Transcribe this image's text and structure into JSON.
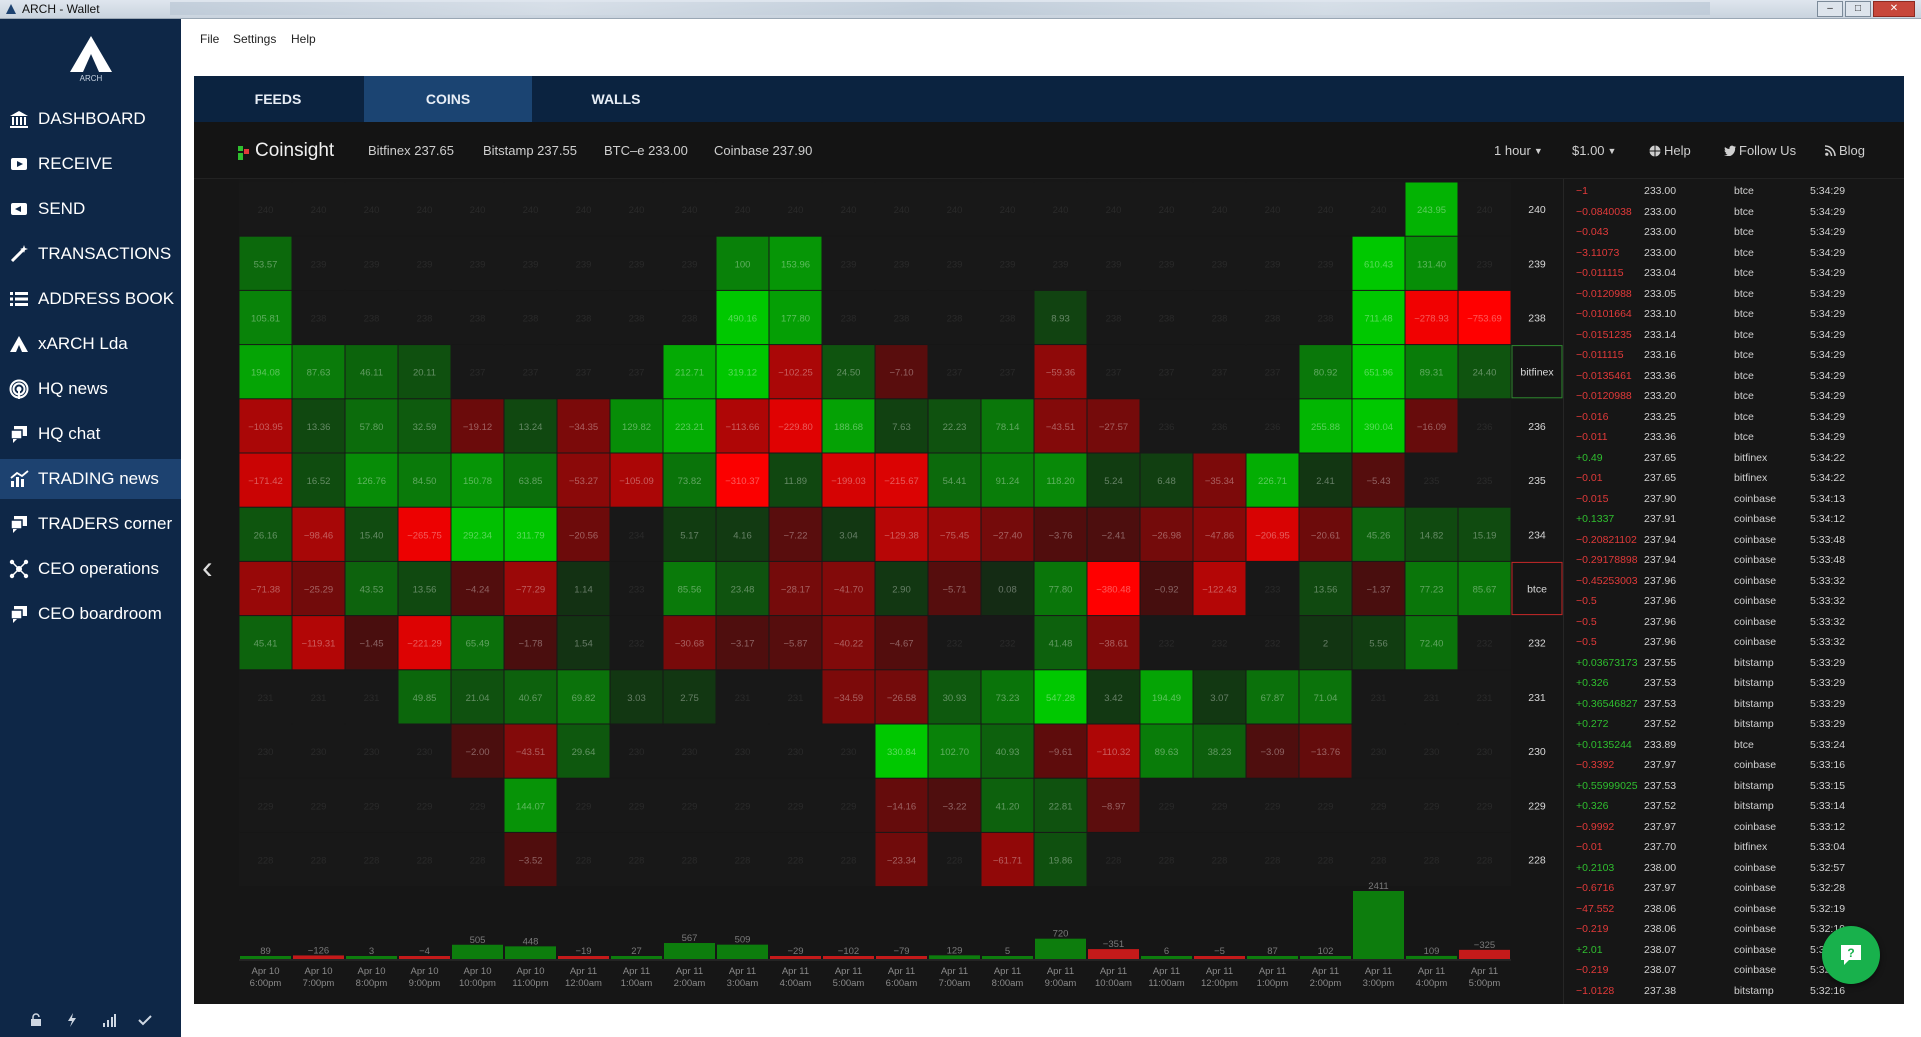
{
  "window": {
    "title": "ARCH - Wallet",
    "buttons": [
      "–",
      "□",
      "✕"
    ]
  },
  "logo": {
    "text": "ARCH"
  },
  "sidebar": {
    "items": [
      {
        "label": "DASHBOARD",
        "icon": "bank-icon",
        "active": false
      },
      {
        "label": "RECEIVE",
        "icon": "receive-icon",
        "active": false
      },
      {
        "label": "SEND",
        "icon": "send-icon",
        "active": false
      },
      {
        "label": "TRANSACTIONS",
        "icon": "magic-wand-icon",
        "active": false
      },
      {
        "label": "ADDRESS BOOK",
        "icon": "list-icon",
        "active": false
      },
      {
        "label": "xARCH Lda",
        "icon": "arch-logo-icon",
        "active": false
      },
      {
        "label": "HQ news",
        "icon": "broadcast-icon",
        "active": false
      },
      {
        "label": "HQ chat",
        "icon": "chat-icon",
        "active": false
      },
      {
        "label": "TRADING news",
        "icon": "chart-icon",
        "active": true
      },
      {
        "label": "TRADERS corner",
        "icon": "chat-icon",
        "active": false
      },
      {
        "label": "CEO operations",
        "icon": "network-icon",
        "active": false
      },
      {
        "label": "CEO boardroom",
        "icon": "chat-icon",
        "active": false
      }
    ],
    "footer_icons": [
      "lock-icon",
      "lightning-icon",
      "signal-icon",
      "check-icon"
    ]
  },
  "menu": {
    "items": [
      "File",
      "Settings",
      "Help"
    ]
  },
  "tabs": [
    {
      "label": "FEEDS",
      "active": false
    },
    {
      "label": "COINS",
      "active": true
    },
    {
      "label": "WALLS",
      "active": false
    }
  ],
  "coinsight": {
    "brand": "Coinsight",
    "exchanges": [
      "Bitfinex 237.65",
      "Bitstamp 237.55",
      "BTC–e 233.00",
      "Coinbase 237.90"
    ],
    "interval": "1 hour",
    "amount": "$1.00",
    "help": "Help",
    "follow": "Follow Us",
    "blog": "Blog"
  },
  "colors": {
    "sidebar_bg": "#0e2747",
    "sidebar_active": "#1d4270",
    "tabs_bg": "#0b2340",
    "tab_active": "#1b4472",
    "panel_bg": "#151515",
    "buy": "#00a000",
    "sell": "#e00000",
    "chat_button": "#18b14c"
  },
  "chart_data": {
    "type": "heatmap",
    "columns": [
      [
        "Apr 10",
        "6:00pm"
      ],
      [
        "Apr 10",
        "7:00pm"
      ],
      [
        "Apr 10",
        "8:00pm"
      ],
      [
        "Apr 10",
        "9:00pm"
      ],
      [
        "Apr 10",
        "10:00pm"
      ],
      [
        "Apr 10",
        "11:00pm"
      ],
      [
        "Apr 11",
        "12:00am"
      ],
      [
        "Apr 11",
        "1:00am"
      ],
      [
        "Apr 11",
        "2:00am"
      ],
      [
        "Apr 11",
        "3:00am"
      ],
      [
        "Apr 11",
        "4:00am"
      ],
      [
        "Apr 11",
        "5:00am"
      ],
      [
        "Apr 11",
        "6:00am"
      ],
      [
        "Apr 11",
        "7:00am"
      ],
      [
        "Apr 11",
        "8:00am"
      ],
      [
        "Apr 11",
        "9:00am"
      ],
      [
        "Apr 11",
        "10:00am"
      ],
      [
        "Apr 11",
        "11:00am"
      ],
      [
        "Apr 11",
        "12:00pm"
      ],
      [
        "Apr 11",
        "1:00pm"
      ],
      [
        "Apr 11",
        "2:00pm"
      ],
      [
        "Apr 11",
        "3:00pm"
      ],
      [
        "Apr 11",
        "4:00pm"
      ],
      [
        "Apr 11",
        "5:00pm"
      ]
    ],
    "rows": [
      "240",
      "239",
      "238",
      "bitfinex",
      "236",
      "235",
      "234",
      "btce",
      "232",
      "231",
      "230",
      "229",
      "228"
    ],
    "cells": [
      [
        240,
        240,
        240,
        240,
        240,
        240,
        240,
        240,
        240,
        240,
        240,
        240,
        240,
        240,
        240,
        240,
        240,
        240,
        240,
        240,
        240,
        240,
        243.95,
        240
      ],
      [
        53.57,
        239,
        239,
        239,
        239,
        239,
        239,
        239,
        239,
        100.0,
        153.96,
        239,
        239,
        239,
        239,
        239,
        239,
        239,
        239,
        239,
        239,
        610.43,
        131.4,
        239
      ],
      [
        105.81,
        238,
        238,
        238,
        238,
        238,
        238,
        238,
        238,
        490.16,
        177.8,
        238,
        238,
        238,
        238,
        8.93,
        238,
        238,
        238,
        238,
        238,
        711.48,
        -278.93,
        -753.69
      ],
      [
        194.08,
        87.63,
        46.11,
        20.11,
        237,
        237,
        237,
        237,
        212.71,
        319.12,
        -102.25,
        24.5,
        -7.1,
        237,
        237,
        -59.36,
        237,
        237,
        237,
        237,
        80.92,
        651.96,
        89.31,
        24.4
      ],
      [
        -103.95,
        13.36,
        57.8,
        32.59,
        -19.12,
        13.24,
        -34.35,
        129.82,
        223.21,
        -113.66,
        -229.8,
        188.68,
        7.63,
        22.23,
        78.14,
        -43.51,
        -27.57,
        236,
        236,
        236,
        255.88,
        390.04,
        -16.09,
        236
      ],
      [
        -171.42,
        16.52,
        126.76,
        84.5,
        150.78,
        63.85,
        -53.27,
        -105.09,
        73.82,
        -310.37,
        11.89,
        -199.03,
        -215.67,
        54.41,
        91.24,
        118.2,
        5.24,
        6.48,
        -35.34,
        226.71,
        2.41,
        -5.43,
        235,
        235
      ],
      [
        26.16,
        -98.46,
        15.4,
        -265.75,
        292.34,
        311.79,
        -20.56,
        234,
        5.17,
        4.16,
        -7.22,
        3.04,
        -129.38,
        -75.45,
        -27.4,
        -3.76,
        -2.41,
        -26.98,
        -47.86,
        -206.95,
        -20.61,
        45.26,
        14.82,
        15.19
      ],
      [
        -71.38,
        -25.29,
        43.53,
        13.56,
        -4.24,
        -77.29,
        1.14,
        233,
        85.56,
        23.48,
        -28.17,
        -41.7,
        2.9,
        -5.71,
        0.08,
        77.8,
        -380.48,
        -0.92,
        -122.43,
        233,
        13.56,
        -1.37,
        77.23,
        85.67
      ],
      [
        45.41,
        -119.31,
        -1.45,
        -221.29,
        65.49,
        -1.78,
        1.54,
        232,
        -30.68,
        -3.17,
        -5.87,
        -40.22,
        -4.67,
        232,
        232,
        41.48,
        -38.61,
        232,
        232,
        232,
        2.0,
        5.56,
        72.4,
        232
      ],
      [
        231,
        231,
        231,
        49.85,
        21.04,
        40.67,
        69.82,
        3.03,
        2.75,
        231,
        231,
        -34.59,
        -26.58,
        30.93,
        73.23,
        547.28,
        3.42,
        194.49,
        3.07,
        67.87,
        71.04,
        231,
        231,
        231
      ],
      [
        230,
        230,
        230,
        230,
        -2.0,
        -43.51,
        29.64,
        230,
        230,
        230,
        230,
        230,
        330.84,
        102.7,
        40.93,
        -9.61,
        -110.32,
        89.63,
        38.23,
        -3.09,
        -13.76,
        230,
        230,
        230
      ],
      [
        229,
        229,
        229,
        229,
        229,
        144.07,
        229,
        229,
        229,
        229,
        229,
        229,
        -14.16,
        -3.22,
        41.2,
        22.81,
        -8.97,
        229,
        229,
        229,
        229,
        229,
        229,
        229
      ],
      [
        228,
        228,
        228,
        228,
        228,
        -3.52,
        228,
        228,
        228,
        228,
        228,
        228,
        -23.34,
        228,
        -61.71,
        19.86,
        228,
        228,
        228,
        228,
        228,
        228,
        228,
        228
      ]
    ],
    "volume": [
      89,
      -126,
      3,
      -4,
      505,
      448,
      -19,
      27,
      567,
      509,
      -29,
      -102,
      -79,
      129,
      5,
      720,
      -351,
      6,
      -5,
      87,
      102,
      2411,
      109,
      -325
    ]
  },
  "trades": [
    {
      "delta": "-1",
      "price": "233.00",
      "exchange": "btce",
      "time": "5:34:29"
    },
    {
      "delta": "-0.0840038",
      "price": "233.00",
      "exchange": "btce",
      "time": "5:34:29"
    },
    {
      "delta": "-0.043",
      "price": "233.00",
      "exchange": "btce",
      "time": "5:34:29"
    },
    {
      "delta": "-3.11073",
      "price": "233.00",
      "exchange": "btce",
      "time": "5:34:29"
    },
    {
      "delta": "-0.011115",
      "price": "233.04",
      "exchange": "btce",
      "time": "5:34:29"
    },
    {
      "delta": "-0.0120988",
      "price": "233.05",
      "exchange": "btce",
      "time": "5:34:29"
    },
    {
      "delta": "-0.0101664",
      "price": "233.10",
      "exchange": "btce",
      "time": "5:34:29"
    },
    {
      "delta": "-0.0151235",
      "price": "233.14",
      "exchange": "btce",
      "time": "5:34:29"
    },
    {
      "delta": "-0.011115",
      "price": "233.16",
      "exchange": "btce",
      "time": "5:34:29"
    },
    {
      "delta": "-0.0135461",
      "price": "233.36",
      "exchange": "btce",
      "time": "5:34:29"
    },
    {
      "delta": "-0.0120988",
      "price": "233.20",
      "exchange": "btce",
      "time": "5:34:29"
    },
    {
      "delta": "-0.016",
      "price": "233.25",
      "exchange": "btce",
      "time": "5:34:29"
    },
    {
      "delta": "-0.011",
      "price": "233.36",
      "exchange": "btce",
      "time": "5:34:29"
    },
    {
      "delta": "+0.49",
      "price": "237.65",
      "exchange": "bitfinex",
      "time": "5:34:22"
    },
    {
      "delta": "-0.01",
      "price": "237.65",
      "exchange": "bitfinex",
      "time": "5:34:22"
    },
    {
      "delta": "-0.015",
      "price": "237.90",
      "exchange": "coinbase",
      "time": "5:34:13"
    },
    {
      "delta": "+0.1337",
      "price": "237.91",
      "exchange": "coinbase",
      "time": "5:34:12"
    },
    {
      "delta": "-0.20821102",
      "price": "237.94",
      "exchange": "coinbase",
      "time": "5:33:48"
    },
    {
      "delta": "-0.29178898",
      "price": "237.94",
      "exchange": "coinbase",
      "time": "5:33:48"
    },
    {
      "delta": "-0.45253003",
      "price": "237.96",
      "exchange": "coinbase",
      "time": "5:33:32"
    },
    {
      "delta": "-0.5",
      "price": "237.96",
      "exchange": "coinbase",
      "time": "5:33:32"
    },
    {
      "delta": "-0.5",
      "price": "237.96",
      "exchange": "coinbase",
      "time": "5:33:32"
    },
    {
      "delta": "-0.5",
      "price": "237.96",
      "exchange": "coinbase",
      "time": "5:33:32"
    },
    {
      "delta": "+0.03673173",
      "price": "237.55",
      "exchange": "bitstamp",
      "time": "5:33:29"
    },
    {
      "delta": "+0.326",
      "price": "237.53",
      "exchange": "bitstamp",
      "time": "5:33:29"
    },
    {
      "delta": "+0.36546827",
      "price": "237.53",
      "exchange": "bitstamp",
      "time": "5:33:29"
    },
    {
      "delta": "+0.272",
      "price": "237.52",
      "exchange": "bitstamp",
      "time": "5:33:29"
    },
    {
      "delta": "+0.0135244",
      "price": "233.89",
      "exchange": "btce",
      "time": "5:33:24"
    },
    {
      "delta": "-0.3392",
      "price": "237.97",
      "exchange": "coinbase",
      "time": "5:33:16"
    },
    {
      "delta": "+0.55999025",
      "price": "237.53",
      "exchange": "bitstamp",
      "time": "5:33:15"
    },
    {
      "delta": "+0.326",
      "price": "237.52",
      "exchange": "bitstamp",
      "time": "5:33:14"
    },
    {
      "delta": "-0.9992",
      "price": "237.97",
      "exchange": "coinbase",
      "time": "5:33:12"
    },
    {
      "delta": "-0.01",
      "price": "237.70",
      "exchange": "bitfinex",
      "time": "5:33:04"
    },
    {
      "delta": "+0.2103",
      "price": "238.00",
      "exchange": "coinbase",
      "time": "5:32:57"
    },
    {
      "delta": "-0.6716",
      "price": "237.97",
      "exchange": "coinbase",
      "time": "5:32:28"
    },
    {
      "delta": "-47.552",
      "price": "238.06",
      "exchange": "coinbase",
      "time": "5:32:19"
    },
    {
      "delta": "-0.219",
      "price": "238.06",
      "exchange": "coinbase",
      "time": "5:32:19"
    },
    {
      "delta": "+2.01",
      "price": "238.07",
      "exchange": "coinbase",
      "time": "5:32:17"
    },
    {
      "delta": "-0.219",
      "price": "238.07",
      "exchange": "coinbase",
      "time": "5:32:17"
    },
    {
      "delta": "-1.0128",
      "price": "237.38",
      "exchange": "bitstamp",
      "time": "5:32:16"
    }
  ]
}
